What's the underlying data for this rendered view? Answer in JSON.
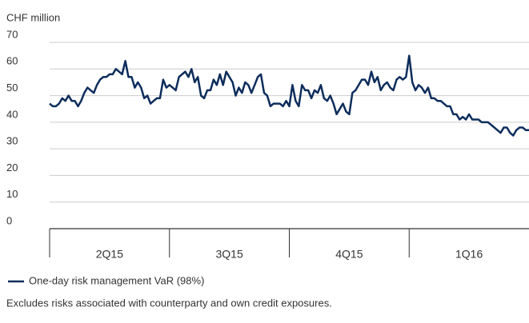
{
  "chart_data": {
    "type": "line",
    "ylabel": "CHF million",
    "quarters": [
      "2Q15",
      "3Q15",
      "4Q15",
      "1Q16"
    ],
    "ylim": [
      0,
      70
    ],
    "yticks": [
      0,
      10,
      20,
      30,
      40,
      50,
      60,
      70
    ],
    "grid": true,
    "series": [
      {
        "name": "One-day risk management VaR (98%)",
        "color": "#0d2d5c",
        "values": [
          47,
          46,
          46,
          47,
          49,
          48,
          50,
          48,
          48,
          46,
          48,
          51,
          53,
          52,
          51,
          54,
          56,
          57,
          57,
          58,
          58,
          60,
          59,
          58,
          63,
          57,
          57,
          53,
          55,
          53,
          49,
          50,
          47,
          48,
          49,
          49,
          56,
          53,
          54,
          53,
          52,
          57,
          58,
          59,
          57,
          60,
          55,
          57,
          50,
          49,
          52,
          52,
          56,
          54,
          58,
          54,
          59,
          57,
          55,
          50,
          53,
          51,
          55,
          54,
          51,
          54,
          57,
          58,
          51,
          50,
          46,
          47,
          47,
          47,
          46,
          48,
          46,
          54,
          48,
          46,
          54,
          52,
          52,
          49,
          52,
          51,
          54,
          49,
          48,
          50,
          47,
          43,
          45,
          47,
          44,
          43,
          51,
          52,
          54,
          56,
          56,
          54,
          59,
          55,
          57,
          52,
          54,
          55,
          53,
          52,
          56,
          57,
          56,
          57,
          65,
          55,
          52,
          54,
          53,
          51,
          53,
          49,
          49,
          48,
          48,
          47,
          46,
          46,
          43,
          43,
          41,
          42,
          41,
          43,
          41,
          41,
          41,
          40,
          40,
          40,
          39,
          38,
          37,
          36,
          38,
          38,
          36,
          35,
          37,
          38,
          38,
          37,
          37
        ]
      }
    ],
    "note": "Excludes risks associated with counterparty and own credit exposures."
  }
}
